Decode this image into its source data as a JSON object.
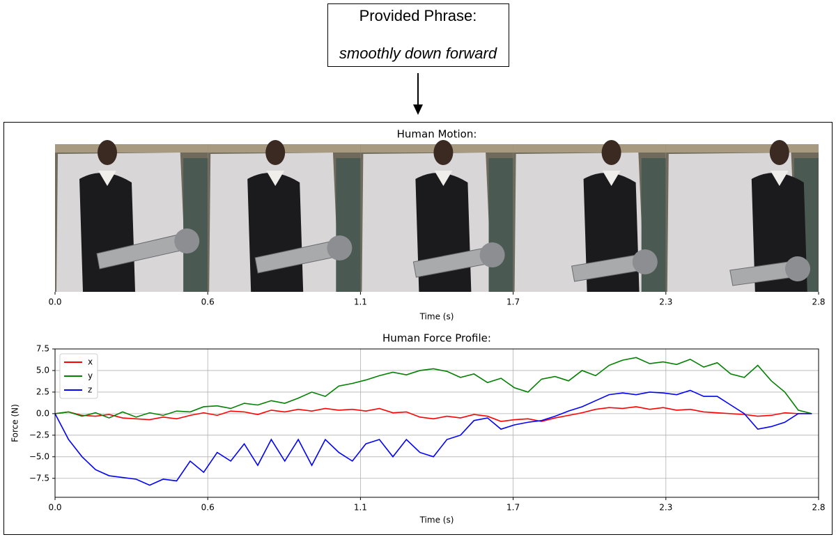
{
  "phrase": {
    "title": "Provided Phrase:",
    "text": "smoothly down forward"
  },
  "chart_data": [
    {
      "type": "strip",
      "title": "Human Motion:",
      "xlabel": "Time (s)",
      "xlim": [
        0,
        2.825
      ],
      "xticks": [
        {
          "value": 0,
          "label": "0.0"
        },
        {
          "value": 0.565,
          "label": "0.6"
        },
        {
          "value": 1.13,
          "label": "1.1"
        },
        {
          "value": 1.695,
          "label": "1.7"
        },
        {
          "value": 2.26,
          "label": "2.3"
        },
        {
          "value": 2.825,
          "label": "2.8"
        }
      ]
    },
    {
      "type": "line",
      "title": "Human Force Profile:",
      "xlabel": "Time (s)",
      "ylabel": "Force (N)",
      "xlim": [
        0,
        2.825
      ],
      "ylim": [
        -9.7,
        7.5
      ],
      "xticks": [
        {
          "value": 0,
          "label": "0.0"
        },
        {
          "value": 0.565,
          "label": "0.6"
        },
        {
          "value": 1.13,
          "label": "1.1"
        },
        {
          "value": 1.695,
          "label": "1.7"
        },
        {
          "value": 2.26,
          "label": "2.3"
        },
        {
          "value": 2.825,
          "label": "2.8"
        }
      ],
      "yticks": [
        {
          "value": -7.5,
          "label": "−7.5"
        },
        {
          "value": -5,
          "label": "−5.0"
        },
        {
          "value": -2.5,
          "label": "−2.5"
        },
        {
          "value": 0,
          "label": "0.0"
        },
        2.5,
        {
          "value": 5,
          "label": "5.0"
        },
        7.5
      ],
      "grid": true,
      "legend": "upper-left",
      "x": [
        0,
        0.05,
        0.1,
        0.15,
        0.2,
        0.25,
        0.3,
        0.35,
        0.4,
        0.45,
        0.5,
        0.55,
        0.6,
        0.65,
        0.7,
        0.75,
        0.8,
        0.85,
        0.9,
        0.95,
        1.0,
        1.05,
        1.1,
        1.15,
        1.2,
        1.25,
        1.3,
        1.35,
        1.4,
        1.45,
        1.5,
        1.55,
        1.6,
        1.65,
        1.7,
        1.75,
        1.8,
        1.85,
        1.9,
        1.95,
        2.0,
        2.05,
        2.1,
        2.15,
        2.2,
        2.25,
        2.3,
        2.35,
        2.4,
        2.45,
        2.5,
        2.55,
        2.6,
        2.65,
        2.7,
        2.75,
        2.8
      ],
      "series": [
        {
          "name": "x",
          "color": "#ff0000",
          "values": [
            0,
            0.2,
            -0.2,
            -0.3,
            -0.1,
            -0.5,
            -0.6,
            -0.7,
            -0.4,
            -0.6,
            -0.2,
            0.1,
            -0.2,
            0.3,
            0.2,
            -0.1,
            0.4,
            0.2,
            0.5,
            0.3,
            0.6,
            0.4,
            0.5,
            0.3,
            0.6,
            0.1,
            0.2,
            -0.4,
            -0.6,
            -0.3,
            -0.5,
            -0.1,
            -0.3,
            -0.9,
            -0.7,
            -0.6,
            -0.9,
            -0.5,
            -0.2,
            0.1,
            0.5,
            0.7,
            0.6,
            0.8,
            0.5,
            0.7,
            0.4,
            0.5,
            0.2,
            0.1,
            0.0,
            -0.1,
            -0.3,
            -0.2,
            0.1,
            0.0,
            0.0
          ]
        },
        {
          "name": "y",
          "color": "#008000",
          "values": [
            0,
            0.2,
            -0.3,
            0.1,
            -0.5,
            0.2,
            -0.4,
            0.1,
            -0.2,
            0.3,
            0.2,
            0.8,
            0.9,
            0.6,
            1.2,
            1.0,
            1.5,
            1.2,
            1.8,
            2.5,
            2.0,
            3.2,
            3.5,
            3.9,
            4.4,
            4.8,
            4.5,
            5.0,
            5.2,
            4.9,
            4.2,
            4.6,
            3.6,
            4.1,
            3.0,
            2.5,
            4.0,
            4.3,
            3.8,
            5.0,
            4.4,
            5.6,
            6.2,
            6.5,
            5.8,
            6.0,
            5.7,
            6.3,
            5.4,
            5.9,
            4.6,
            4.2,
            5.6,
            3.8,
            2.5,
            0.4,
            0.0
          ]
        },
        {
          "name": "z",
          "color": "#0000ff",
          "values": [
            0,
            -3,
            -5,
            -6.5,
            -7.2,
            -7.4,
            -7.6,
            -8.3,
            -7.6,
            -7.8,
            -5.5,
            -6.8,
            -4.5,
            -5.5,
            -3.5,
            -6.0,
            -3.0,
            -5.5,
            -3.0,
            -6.0,
            -3.0,
            -4.5,
            -5.5,
            -3.5,
            -3.0,
            -5.0,
            -3.0,
            -4.5,
            -5.0,
            -3.0,
            -2.5,
            -0.8,
            -0.5,
            -1.8,
            -1.3,
            -1.0,
            -0.8,
            -0.3,
            0.3,
            0.8,
            1.5,
            2.2,
            2.4,
            2.2,
            2.5,
            2.4,
            2.2,
            2.7,
            2.0,
            2.0,
            1.0,
            0.0,
            -1.8,
            -1.5,
            -1.0,
            0.0,
            0.0
          ]
        }
      ]
    }
  ]
}
